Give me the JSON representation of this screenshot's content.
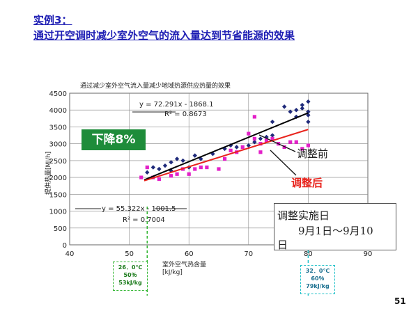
{
  "slide": {
    "title_line1": "实例3：",
    "title_line2": "通过开空调时减少室外空气的流入量达到节省能源的效果",
    "page_number": "51"
  },
  "annotations": {
    "decrease_badge": "下降8%",
    "before_label": "调整前",
    "after_label": "调整后",
    "impl_line1": "调整实施日",
    "impl_line2": "9月1日～9月10",
    "impl_line3": "日",
    "cond_left": [
      "26．0℃",
      "50％",
      "53kJ/kg"
    ],
    "cond_right": [
      "32．0℃",
      "60％",
      "79kJ/kg"
    ],
    "x_unit_label_1": "室外空气热含量",
    "x_unit_label_2": "[kJ/kg]",
    "colors": {
      "badge": "#1e8c3a",
      "after": "#e8231c",
      "before_series": "#1f2a7a",
      "after_series": "#e320c8"
    }
  },
  "chart_data": {
    "type": "scatter",
    "title": "通过减少室外空气流入量减少地域热源供应热量的效果",
    "xlabel": "",
    "ylabel": "提供热量[MJ/h]",
    "xlim": [
      40,
      90
    ],
    "ylim": [
      0,
      4500
    ],
    "xticks": [
      40,
      50,
      60,
      70,
      80,
      90
    ],
    "yticks": [
      0,
      500,
      1000,
      1500,
      2000,
      2500,
      3000,
      3500,
      4000,
      4500
    ],
    "grid": true,
    "series": [
      {
        "name": "调整前",
        "color": "#1f2a7a",
        "marker": "diamond",
        "points": [
          [
            53,
            2150
          ],
          [
            54,
            2300
          ],
          [
            55,
            2250
          ],
          [
            56,
            2350
          ],
          [
            57,
            2200
          ],
          [
            57,
            2450
          ],
          [
            58,
            2550
          ],
          [
            59,
            2500
          ],
          [
            60,
            2300
          ],
          [
            61,
            2650
          ],
          [
            62,
            2550
          ],
          [
            64,
            2700
          ],
          [
            66,
            2850
          ],
          [
            67,
            2950
          ],
          [
            68,
            2900
          ],
          [
            70,
            2950
          ],
          [
            71,
            3050
          ],
          [
            72,
            3150
          ],
          [
            73,
            3200
          ],
          [
            74,
            3250
          ],
          [
            74,
            3650
          ],
          [
            76,
            4100
          ],
          [
            77,
            3950
          ],
          [
            78,
            3800
          ],
          [
            78,
            4000
          ],
          [
            79,
            4050
          ],
          [
            79,
            4150
          ],
          [
            80,
            3850
          ],
          [
            80,
            4250
          ],
          [
            80,
            3950
          ],
          [
            80,
            3650
          ]
        ]
      },
      {
        "name": "调整后",
        "color": "#e320c8",
        "marker": "square",
        "points": [
          [
            52,
            2000
          ],
          [
            53,
            2300
          ],
          [
            54,
            2000
          ],
          [
            55,
            1950
          ],
          [
            57,
            2050
          ],
          [
            58,
            2100
          ],
          [
            59,
            2250
          ],
          [
            60,
            2100
          ],
          [
            61,
            2250
          ],
          [
            62,
            2300
          ],
          [
            63,
            2300
          ],
          [
            65,
            2250
          ],
          [
            66,
            2550
          ],
          [
            67,
            2800
          ],
          [
            68,
            2750
          ],
          [
            69,
            2900
          ],
          [
            70,
            3300
          ],
          [
            71,
            3150
          ],
          [
            71,
            3800
          ],
          [
            72,
            3000
          ],
          [
            72,
            2750
          ],
          [
            73,
            3100
          ],
          [
            74,
            3150
          ],
          [
            75,
            3000
          ],
          [
            76,
            2900
          ],
          [
            77,
            3050
          ],
          [
            78,
            3050
          ],
          [
            79,
            2850
          ],
          [
            80,
            2950
          ]
        ]
      }
    ],
    "trendlines": [
      {
        "series": "调整前",
        "equation": "y = 72.291x - 1868.1",
        "r2": "R² = 0.8673",
        "slope": 72.291,
        "intercept": -1868.1,
        "x_range": [
          52.5,
          80
        ]
      },
      {
        "series": "调整后",
        "equation": "y = 55.322x - 1001.5",
        "r2": "R² = 0.7004",
        "slope": 55.322,
        "intercept": -1001.5,
        "x_range": [
          52.5,
          80
        ]
      }
    ],
    "reference_lines": [
      {
        "x": 53,
        "color": "#2fb52f"
      },
      {
        "x": 80,
        "color": "#21c1c9"
      }
    ]
  }
}
